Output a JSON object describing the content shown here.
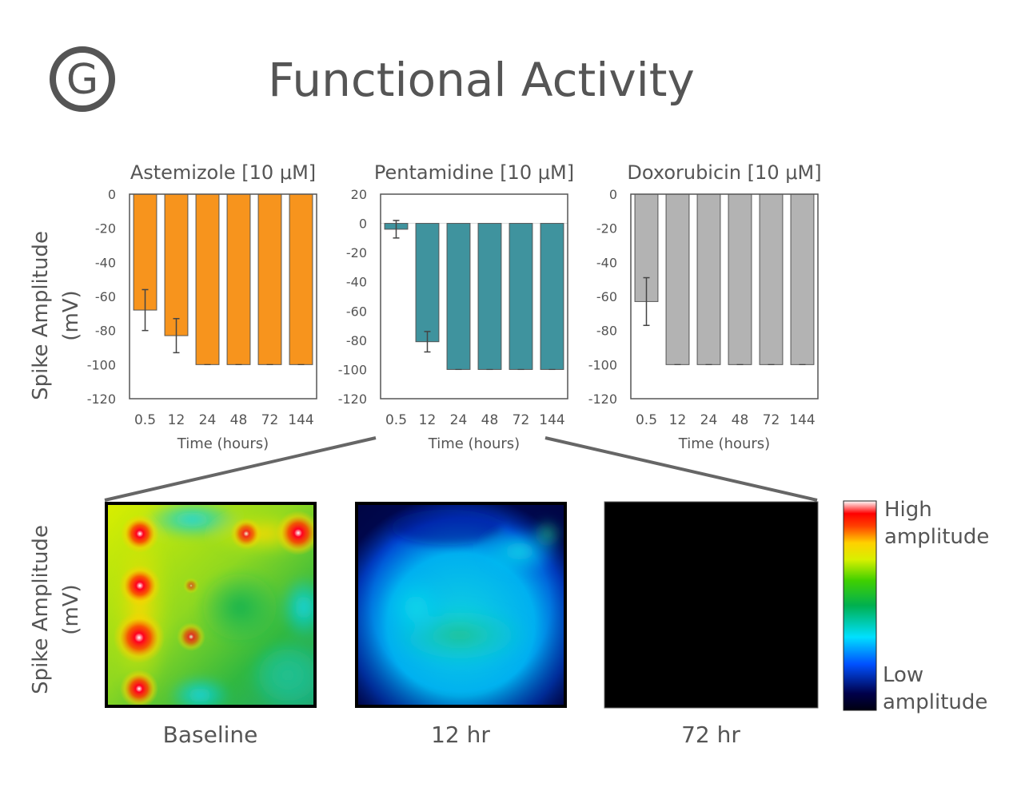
{
  "panel_label": "G",
  "title": "Functional Activity",
  "y_axis_label_lines": [
    "Spike Amplitude",
    "(mV)"
  ],
  "x_axis_label": "Time (hours)",
  "colors": {
    "astemizole": "#F7941D",
    "pentamidine": "#3F939E",
    "doxorubicin": "#B3B3B3",
    "text": "#555555",
    "frame": "#555555"
  },
  "chart_data": [
    {
      "type": "bar",
      "title": "Astemizole [10 μM]",
      "xlabel": "Time (hours)",
      "ylabel": "Spike Amplitude (mV)",
      "categories": [
        "0.5",
        "12",
        "24",
        "48",
        "72",
        "144"
      ],
      "values": [
        -68,
        -83,
        -100,
        -100,
        -100,
        -100
      ],
      "errors": [
        12,
        10,
        0,
        0,
        0,
        0
      ],
      "ylim": [
        -120,
        0
      ],
      "yticks": [
        0,
        -20,
        -40,
        -60,
        -80,
        -100,
        -120
      ],
      "color": "#F7941D"
    },
    {
      "type": "bar",
      "title": "Pentamidine [10 μM]",
      "xlabel": "Time (hours)",
      "ylabel": "Spike Amplitude (mV)",
      "categories": [
        "0.5",
        "12",
        "24",
        "48",
        "72",
        "144"
      ],
      "values": [
        -4,
        -81,
        -100,
        -100,
        -100,
        -100
      ],
      "errors": [
        6,
        7,
        0,
        0,
        0,
        0
      ],
      "ylim": [
        -120,
        20
      ],
      "yticks": [
        20,
        0,
        -20,
        -40,
        -60,
        -80,
        -100,
        -120
      ],
      "color": "#3F939E"
    },
    {
      "type": "bar",
      "title": "Doxorubicin [10 μM]",
      "xlabel": "Time (hours)",
      "ylabel": "Spike Amplitude (mV)",
      "categories": [
        "0.5",
        "12",
        "24",
        "48",
        "72",
        "144"
      ],
      "values": [
        -63,
        -100,
        -100,
        -100,
        -100,
        -100
      ],
      "errors": [
        14,
        0,
        0,
        0,
        0,
        0
      ],
      "ylim": [
        -120,
        0
      ],
      "yticks": [
        0,
        -20,
        -40,
        -60,
        -80,
        -100,
        -120
      ],
      "color": "#B3B3B3"
    }
  ],
  "heatmaps": [
    {
      "label": "Baseline",
      "state": "high"
    },
    {
      "label": "12 hr",
      "state": "low"
    },
    {
      "label": "72 hr",
      "state": "none"
    }
  ],
  "colorbar": {
    "high_lines": [
      "High",
      "amplitude"
    ],
    "low_lines": [
      "Low",
      "amplitude"
    ]
  }
}
